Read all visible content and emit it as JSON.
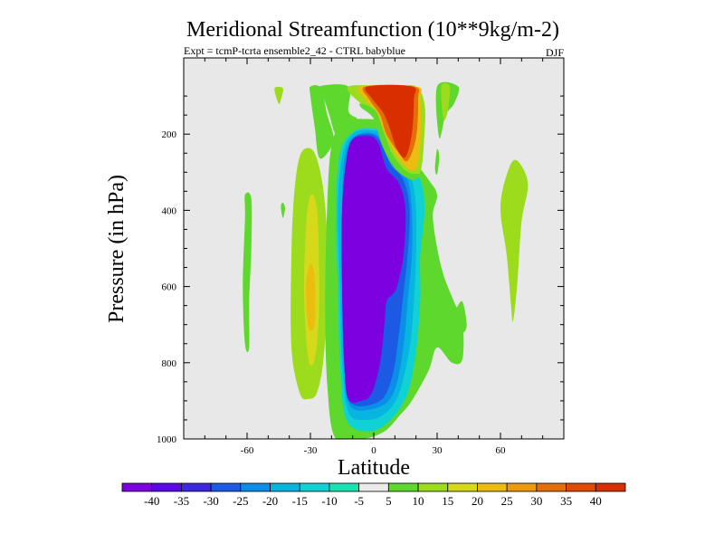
{
  "chart_data": {
    "type": "heatmap",
    "title": "Meridional Streamfunction (10**9kg/m-2)",
    "subtitle": "Expt = tcmP-tcrta  ensemble2_42 - CTRL babyblue",
    "season_label": "DJF",
    "xlabel": "Latitude",
    "ylabel": "Pressure (in hPa)",
    "xlim": [
      -90,
      90
    ],
    "ylim": [
      0,
      1000
    ],
    "y_reversed": true,
    "x_ticks": [
      -60,
      -30,
      0,
      30,
      60
    ],
    "y_ticks": [
      200,
      400,
      600,
      800,
      1000
    ],
    "background_color": "#e8e8e8",
    "colorbar": {
      "levels": [
        -40,
        -35,
        -30,
        -25,
        -20,
        -15,
        -10,
        -5,
        5,
        10,
        15,
        20,
        25,
        30,
        35,
        40
      ],
      "colors": [
        "#7c00e0",
        "#5a08e8",
        "#3c28e0",
        "#1c5ae6",
        "#0a8ee8",
        "#08b4e0",
        "#10d2d4",
        "#18e4b2",
        "#ebebeb",
        "#5ed82c",
        "#9cdc1c",
        "#d6d81a",
        "#ecbc10",
        "#ec9a0c",
        "#e46e08",
        "#e04a04",
        "#d82e00"
      ]
    },
    "regions": [
      {
        "value": 12,
        "points": [
          [
            -35,
            880
          ],
          [
            -39,
            760
          ],
          [
            -39,
            520
          ],
          [
            -38,
            380
          ],
          [
            -36,
            280
          ],
          [
            -33,
            240
          ],
          [
            -28,
            250
          ],
          [
            -24,
            340
          ],
          [
            -22,
            480
          ],
          [
            -22,
            640
          ],
          [
            -24,
            800
          ],
          [
            -27,
            880
          ],
          [
            -31,
            895
          ]
        ]
      },
      {
        "value": 18,
        "points": [
          [
            -31,
            790
          ],
          [
            -33,
            620
          ],
          [
            -32,
            440
          ],
          [
            -30,
            360
          ],
          [
            -27,
            390
          ],
          [
            -26,
            520
          ],
          [
            -26,
            680
          ],
          [
            -28,
            790
          ]
        ]
      },
      {
        "value": 23,
        "points": [
          [
            -31,
            705
          ],
          [
            -32,
            600
          ],
          [
            -30,
            540
          ],
          [
            -28,
            580
          ],
          [
            -28,
            700
          ]
        ]
      },
      {
        "value": 12,
        "points": [
          [
            -47,
            80
          ],
          [
            -43,
            80
          ],
          [
            -44,
            110
          ],
          [
            -45,
            120
          ]
        ]
      },
      {
        "value": 12,
        "points": [
          [
            60,
            390
          ],
          [
            64,
            290
          ],
          [
            68,
            270
          ],
          [
            73,
            330
          ],
          [
            70,
            430
          ],
          [
            68,
            590
          ],
          [
            66,
            690
          ],
          [
            65,
            650
          ],
          [
            63,
            520
          ]
        ]
      },
      {
        "value": 8,
        "points": [
          [
            -61,
            750
          ],
          [
            -62,
            600
          ],
          [
            -61,
            420
          ],
          [
            -61,
            360
          ],
          [
            -58,
            370
          ],
          [
            -58,
            500
          ],
          [
            -59,
            640
          ],
          [
            -59,
            760
          ]
        ]
      },
      {
        "value": 8,
        "points": [
          [
            -44,
            390
          ],
          [
            -43,
            380
          ],
          [
            -42,
            395
          ],
          [
            -43,
            420
          ]
        ]
      },
      {
        "value": 8,
        "points": [
          [
            -26,
            260
          ],
          [
            -28,
            180
          ],
          [
            -30,
            100
          ],
          [
            -30,
            75
          ],
          [
            -25,
            80
          ],
          [
            -22,
            150
          ],
          [
            -19,
            210
          ],
          [
            -22,
            250
          ]
        ]
      },
      {
        "value": 8,
        "points": [
          [
            -18,
            1000
          ],
          [
            -22,
            860
          ],
          [
            -23,
            640
          ],
          [
            -22,
            380
          ],
          [
            -20,
            230
          ],
          [
            -15,
            170
          ],
          [
            -7,
            160
          ],
          [
            8,
            175
          ],
          [
            18,
            260
          ],
          [
            26,
            320
          ],
          [
            30,
            360
          ],
          [
            28,
            420
          ],
          [
            32,
            550
          ],
          [
            38,
            640
          ],
          [
            42,
            690
          ],
          [
            42,
            790
          ],
          [
            37,
            800
          ],
          [
            30,
            760
          ],
          [
            26,
            820
          ],
          [
            18,
            900
          ],
          [
            12,
            940
          ],
          [
            5,
            980
          ],
          [
            -5,
            1000
          ]
        ]
      },
      {
        "value": 8,
        "points": [
          [
            -18,
            200
          ],
          [
            -21,
            150
          ],
          [
            -24,
            100
          ],
          [
            -26,
            75
          ],
          [
            -12,
            75
          ],
          [
            -12,
            140
          ],
          [
            -8,
            160
          ],
          [
            -14,
            175
          ]
        ]
      },
      {
        "value": 8,
        "points": [
          [
            30,
            75
          ],
          [
            40,
            75
          ],
          [
            38,
            120
          ],
          [
            34,
            150
          ],
          [
            31,
            210
          ]
        ]
      },
      {
        "value": 8,
        "points": [
          [
            29,
            290
          ],
          [
            30,
            240
          ],
          [
            31,
            260
          ],
          [
            30,
            305
          ]
        ]
      },
      {
        "value": -12,
        "points": [
          [
            -13,
            950
          ],
          [
            -16,
            800
          ],
          [
            -17,
            600
          ],
          [
            -18,
            400
          ],
          [
            -16,
            250
          ],
          [
            -10,
            195
          ],
          [
            -2,
            185
          ],
          [
            6,
            200
          ],
          [
            14,
            260
          ],
          [
            22,
            320
          ],
          [
            24,
            400
          ],
          [
            22,
            520
          ],
          [
            22,
            640
          ],
          [
            20,
            770
          ],
          [
            16,
            880
          ],
          [
            8,
            950
          ],
          [
            -2,
            980
          ]
        ]
      },
      {
        "value": -17,
        "points": [
          [
            -12,
            930
          ],
          [
            -15,
            800
          ],
          [
            -16,
            600
          ],
          [
            -17,
            400
          ],
          [
            -15,
            260
          ],
          [
            -10,
            200
          ],
          [
            -2,
            190
          ],
          [
            6,
            205
          ],
          [
            12,
            270
          ],
          [
            18,
            320
          ],
          [
            20,
            400
          ],
          [
            20,
            520
          ],
          [
            19,
            640
          ],
          [
            17,
            760
          ],
          [
            12,
            880
          ],
          [
            5,
            935
          ],
          [
            -4,
            950
          ]
        ]
      },
      {
        "value": -22,
        "points": [
          [
            -11,
            915
          ],
          [
            -14,
            800
          ],
          [
            -15,
            600
          ],
          [
            -15,
            400
          ],
          [
            -14,
            270
          ],
          [
            -10,
            210
          ],
          [
            -2,
            196
          ],
          [
            4,
            215
          ],
          [
            10,
            275
          ],
          [
            16,
            320
          ],
          [
            18,
            400
          ],
          [
            18,
            520
          ],
          [
            16,
            640
          ],
          [
            14,
            760
          ],
          [
            10,
            870
          ],
          [
            3,
            915
          ]
        ]
      },
      {
        "value": -27,
        "points": [
          [
            -11,
            905
          ],
          [
            -14,
            800
          ],
          [
            -15,
            600
          ],
          [
            -15,
            400
          ],
          [
            -13,
            270
          ],
          [
            -10,
            212
          ],
          [
            -2,
            200
          ],
          [
            3,
            218
          ],
          [
            8,
            280
          ],
          [
            14,
            320
          ],
          [
            17,
            400
          ],
          [
            16,
            520
          ],
          [
            14,
            620
          ],
          [
            12,
            720
          ],
          [
            9,
            830
          ],
          [
            3,
            900
          ]
        ]
      },
      {
        "value": -42,
        "points": [
          [
            -12,
            895
          ],
          [
            -14,
            800
          ],
          [
            -15,
            600
          ],
          [
            -15,
            400
          ],
          [
            -13,
            270
          ],
          [
            -10,
            215
          ],
          [
            -3,
            205
          ],
          [
            2,
            222
          ],
          [
            6,
            290
          ],
          [
            12,
            330
          ],
          [
            15,
            400
          ],
          [
            14,
            520
          ],
          [
            11,
            600
          ],
          [
            9,
            620
          ],
          [
            6,
            640
          ],
          [
            5,
            700
          ],
          [
            3,
            800
          ],
          [
            -1,
            880
          ],
          [
            -6,
            900
          ]
        ]
      },
      {
        "value": 12,
        "points": [
          [
            -12,
            75
          ],
          [
            10,
            75
          ],
          [
            20,
            75
          ],
          [
            24,
            120
          ],
          [
            24,
            200
          ],
          [
            22,
            300
          ],
          [
            16,
            300
          ],
          [
            9,
            255
          ],
          [
            5,
            200
          ],
          [
            1,
            140
          ],
          [
            -6,
            120
          ]
        ]
      },
      {
        "value": 12,
        "points": [
          [
            32,
            75
          ],
          [
            36,
            75
          ],
          [
            35,
            140
          ],
          [
            33,
            160
          ]
        ]
      },
      {
        "value": 22,
        "points": [
          [
            -6,
            75
          ],
          [
            20,
            75
          ],
          [
            22,
            110
          ],
          [
            22,
            230
          ],
          [
            20,
            290
          ],
          [
            16,
            290
          ],
          [
            10,
            250
          ],
          [
            5,
            195
          ],
          [
            1,
            140
          ],
          [
            -4,
            110
          ]
        ]
      },
      {
        "value": 32,
        "points": [
          [
            -4,
            75
          ],
          [
            19,
            75
          ],
          [
            21,
            110
          ],
          [
            20,
            210
          ],
          [
            16,
            270
          ],
          [
            12,
            250
          ],
          [
            6,
            200
          ],
          [
            3,
            150
          ],
          [
            -2,
            110
          ]
        ]
      },
      {
        "value": 42,
        "points": [
          [
            -3,
            75
          ],
          [
            18,
            75
          ],
          [
            19,
            110
          ],
          [
            18,
            200
          ],
          [
            15,
            260
          ],
          [
            11,
            240
          ],
          [
            7,
            175
          ],
          [
            4,
            140
          ],
          [
            -1,
            105
          ]
        ]
      },
      {
        "value": 8,
        "points": [
          [
            -6,
            120
          ],
          [
            1,
            140
          ],
          [
            5,
            200
          ],
          [
            9,
            255
          ],
          [
            16,
            300
          ],
          [
            22,
            305
          ],
          [
            18,
            320
          ],
          [
            10,
            290
          ],
          [
            4,
            230
          ],
          [
            0,
            160
          ],
          [
            -6,
            130
          ]
        ]
      },
      {
        "value": 8,
        "points": [
          [
            38,
            690
          ],
          [
            39,
            660
          ],
          [
            42,
            640
          ],
          [
            44,
            700
          ],
          [
            42,
            720
          ]
        ]
      }
    ]
  }
}
